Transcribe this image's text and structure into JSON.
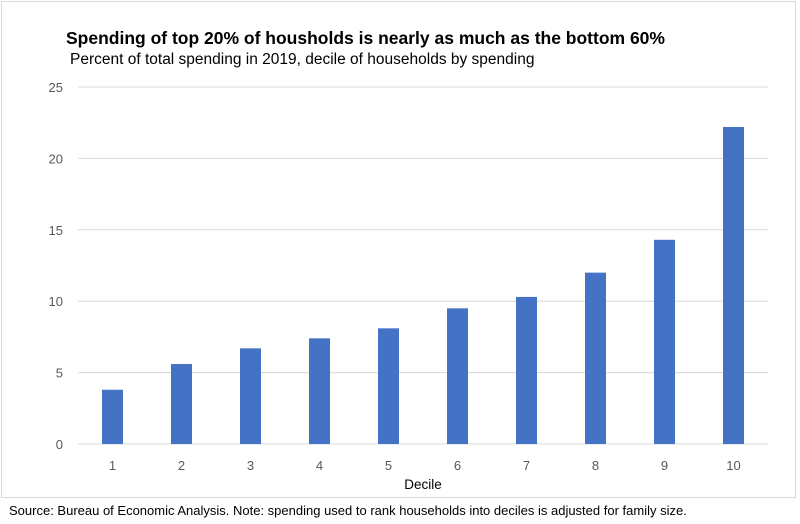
{
  "chart_data": {
    "type": "bar",
    "title": "Spending of top 20% of housholds is nearly as much as the bottom 60%",
    "subtitle": "Percent of total spending in 2019, decile of households by spending",
    "xlabel": "Decile",
    "ylabel": "",
    "categories": [
      "1",
      "2",
      "3",
      "4",
      "5",
      "6",
      "7",
      "8",
      "9",
      "10"
    ],
    "values": [
      3.8,
      5.6,
      6.7,
      7.4,
      8.1,
      9.5,
      10.3,
      12.0,
      14.3,
      22.2
    ],
    "ylim": [
      0,
      25
    ],
    "yticks": [
      "0",
      "5",
      "10",
      "15",
      "20",
      "25"
    ],
    "bar_color": "#4472c4",
    "grid": true,
    "legend": "none"
  },
  "source": "Source: Bureau of Economic Analysis. Note: spending used to rank households into deciles is adjusted for family size."
}
